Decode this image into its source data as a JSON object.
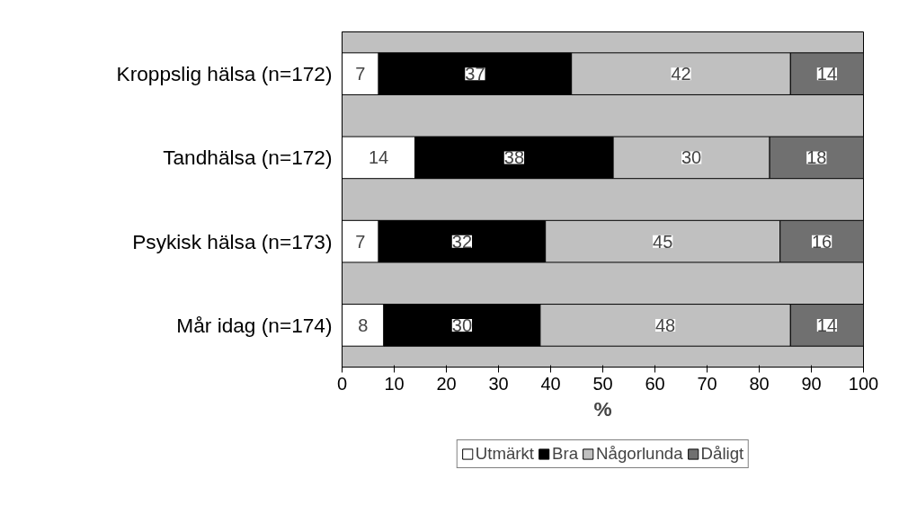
{
  "chart_data": {
    "type": "bar",
    "orientation": "horizontal",
    "stacked": true,
    "data_labels": true,
    "categories": [
      "Kroppslig hälsa (n=172)",
      "Tandhälsa (n=172)",
      "Psykisk hälsa (n=173)",
      "Mår idag (n=174)"
    ],
    "series": [
      {
        "name": "Utmärkt",
        "color": "#ffffff",
        "values": [
          7,
          14,
          7,
          8
        ]
      },
      {
        "name": "Bra",
        "color": "#000000",
        "values": [
          37,
          38,
          32,
          30
        ]
      },
      {
        "name": "Någorlunda",
        "color": "#c0c0c0",
        "values": [
          42,
          30,
          45,
          48
        ]
      },
      {
        "name": "Dåligt",
        "color": "#707070",
        "values": [
          14,
          18,
          16,
          14
        ]
      }
    ],
    "xlim": [
      0,
      100
    ],
    "xticks": [
      0,
      10,
      20,
      30,
      40,
      50,
      60,
      70,
      80,
      90,
      100
    ],
    "xlabel": "%",
    "grid": false,
    "legend": "bottom"
  }
}
